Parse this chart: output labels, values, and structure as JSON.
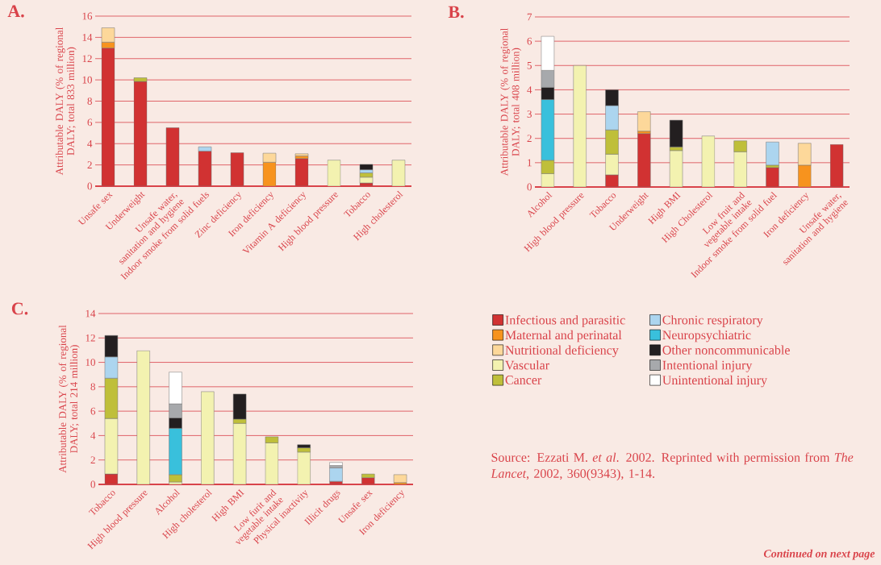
{
  "chart_data": [
    {
      "type": "bar",
      "title": "A.",
      "ylabel": "Attributable DALY (% of regional DALY; total 833 million)",
      "stacked": true,
      "grid": "y",
      "categories": [
        "Unsafe sex",
        "Underweight",
        "Unsafe water, sanitation and hygiene",
        "Indoor smoke from solid fuels",
        "Zinc deficiency",
        "Iron deficiency",
        "Vitamin A deficiency",
        "High blood pressure",
        "Tobacco",
        "High cholesterol"
      ],
      "ylim": [
        0,
        16
      ],
      "yticks": [
        0,
        2,
        4,
        6,
        8,
        10,
        12,
        14,
        16
      ],
      "series": [
        {
          "color": "#d13232",
          "values": [
            13.0,
            9.85,
            5.5,
            3.3,
            3.15,
            null,
            2.6,
            null,
            0.3,
            null
          ]
        },
        {
          "color": "#f7931e",
          "values": [
            0.55,
            null,
            null,
            null,
            null,
            2.25,
            0.25,
            null,
            null,
            null
          ]
        },
        {
          "color": "#fdd89a",
          "values": [
            1.35,
            null,
            null,
            null,
            null,
            0.85,
            0.2,
            null,
            null,
            null
          ]
        },
        {
          "color": "#f3f2b0",
          "values": [
            null,
            null,
            null,
            null,
            null,
            null,
            null,
            2.45,
            0.55,
            2.45
          ]
        },
        {
          "color": "#bfbf3a",
          "values": [
            null,
            0.35,
            null,
            null,
            null,
            null,
            null,
            null,
            0.4,
            null
          ]
        },
        {
          "color": "#acd5ef",
          "values": [
            null,
            null,
            null,
            0.4,
            null,
            null,
            null,
            null,
            0.3,
            null
          ]
        },
        {
          "color": "#231f20",
          "values": [
            null,
            null,
            null,
            null,
            null,
            null,
            null,
            null,
            0.5,
            null
          ]
        }
      ]
    },
    {
      "type": "bar",
      "title": "B.",
      "ylabel": "Attributable DALY (% of regional DALY; total 408 million)",
      "stacked": true,
      "grid": "y",
      "categories": [
        "Alcohol",
        "High blood pressure",
        "Tobacco",
        "Underweight",
        "High BMI",
        "High Cholesterol",
        "Low fruit and vegetable intake",
        "Indoor smoke from solid fuel",
        "Iron deficiency",
        "Unsafe water, sanitation and hygiene"
      ],
      "ylim": [
        0,
        7
      ],
      "yticks": [
        0,
        1,
        2,
        3,
        4,
        5,
        6,
        7
      ],
      "series": [
        {
          "color": "#d13232",
          "values": [
            null,
            null,
            0.5,
            2.2,
            null,
            null,
            null,
            0.8,
            null,
            1.75
          ]
        },
        {
          "color": "#f7931e",
          "values": [
            null,
            null,
            null,
            0.1,
            null,
            null,
            null,
            null,
            0.9,
            null
          ]
        },
        {
          "color": "#fdd89a",
          "values": [
            null,
            null,
            null,
            0.8,
            null,
            null,
            null,
            null,
            0.9,
            null
          ]
        },
        {
          "color": "#f3f2b0",
          "values": [
            0.55,
            5.0,
            0.85,
            null,
            1.5,
            2.1,
            1.45,
            null,
            null,
            null
          ]
        },
        {
          "color": "#bfbf3a",
          "values": [
            0.55,
            null,
            1.0,
            null,
            0.15,
            null,
            0.45,
            0.1,
            null,
            null
          ]
        },
        {
          "color": "#acd5ef",
          "values": [
            null,
            null,
            1.0,
            null,
            null,
            null,
            null,
            0.95,
            null,
            null
          ]
        },
        {
          "color": "#39c0dc",
          "values": [
            2.5,
            null,
            null,
            null,
            null,
            null,
            null,
            null,
            null,
            null
          ]
        },
        {
          "color": "#231f20",
          "values": [
            0.5,
            null,
            0.65,
            null,
            1.1,
            null,
            null,
            null,
            null,
            null
          ]
        },
        {
          "color": "#a7a9ac",
          "values": [
            0.7,
            null,
            null,
            null,
            null,
            null,
            null,
            null,
            null,
            null
          ]
        },
        {
          "color": "#ffffff",
          "values": [
            1.4,
            null,
            null,
            null,
            null,
            null,
            null,
            null,
            null,
            null
          ]
        }
      ]
    },
    {
      "type": "bar",
      "title": "C.",
      "ylabel": "Attributable DALY (% of regional DALY; total 214 million)",
      "stacked": true,
      "grid": "y",
      "legend": "right",
      "categories": [
        "Tobacco",
        "High blood pressure",
        "Alcohol",
        "High cholesterol",
        "High BMI",
        "Low furit and vegetable intake",
        "Physical inactivity",
        "Illicit drugs",
        "Unsafe sex",
        "Iron deficiency"
      ],
      "ylim": [
        0,
        14
      ],
      "yticks": [
        0,
        2,
        4,
        6,
        8,
        10,
        12,
        14
      ],
      "series": [
        {
          "name": "Infectious and parasitic",
          "color": "#d13232",
          "values": [
            0.85,
            null,
            null,
            null,
            null,
            null,
            null,
            0.25,
            0.55,
            null
          ]
        },
        {
          "name": "Maternal and perinatal",
          "color": "#f7931e",
          "values": [
            null,
            null,
            null,
            null,
            null,
            null,
            null,
            null,
            null,
            0.15
          ]
        },
        {
          "name": "Nutritional deficiency",
          "color": "#fdd89a",
          "values": [
            null,
            null,
            null,
            null,
            null,
            null,
            null,
            null,
            null,
            0.65
          ]
        },
        {
          "name": "Vascular",
          "color": "#f3f2b0",
          "values": [
            4.55,
            10.95,
            0.2,
            7.6,
            5.0,
            3.4,
            2.65,
            null,
            null,
            null
          ]
        },
        {
          "name": "Cancer",
          "color": "#bfbf3a",
          "values": [
            3.3,
            null,
            0.6,
            null,
            0.35,
            0.5,
            0.35,
            null,
            0.3,
            null
          ]
        },
        {
          "name": "Chronic respiratory",
          "color": "#acd5ef",
          "values": [
            1.75,
            null,
            null,
            null,
            null,
            null,
            null,
            1.1,
            null,
            null
          ]
        },
        {
          "name": "Neuropsychiatric",
          "color": "#39c0dc",
          "values": [
            null,
            null,
            3.8,
            null,
            null,
            null,
            null,
            null,
            null,
            null
          ]
        },
        {
          "name": "Other noncommunicable",
          "color": "#231f20",
          "values": [
            1.75,
            null,
            0.85,
            null,
            2.05,
            null,
            0.25,
            null,
            null,
            null
          ]
        },
        {
          "name": "Intentional injury",
          "color": "#a7a9ac",
          "values": [
            null,
            null,
            1.15,
            null,
            null,
            null,
            null,
            0.2,
            null,
            null
          ]
        },
        {
          "name": "Unintentional injury",
          "color": "#ffffff",
          "values": [
            null,
            null,
            2.6,
            null,
            null,
            null,
            null,
            0.25,
            null,
            null
          ]
        }
      ],
      "annotations": [
        "Source: Ezzati M. *et al*. 2002. Reprinted with permission from *The Lancet*, 2002, 360(9343), 1-14.",
        "Continued on next page"
      ]
    }
  ]
}
